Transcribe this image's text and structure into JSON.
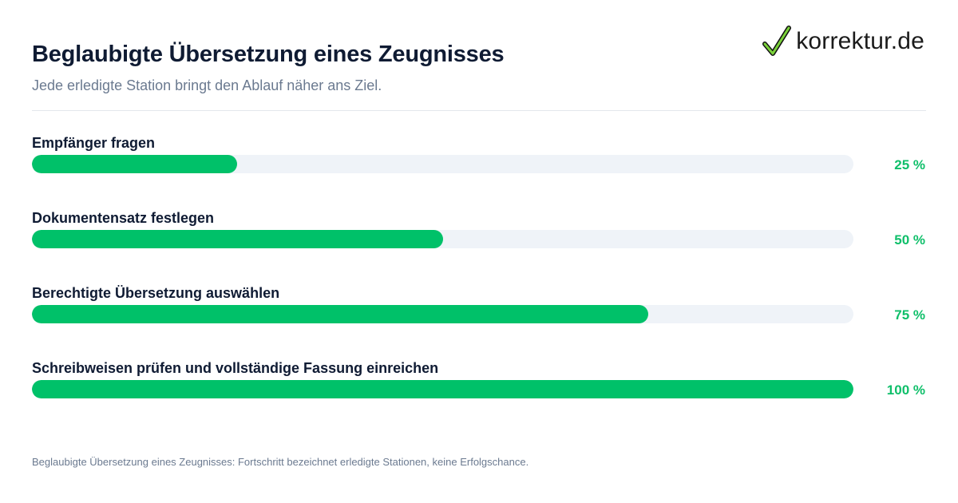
{
  "header": {
    "title": "Beglaubigte Übersetzung eines Zeugnisses",
    "subtitle": "Jede erledigte Station bringt den Ablauf näher ans Ziel."
  },
  "logo": {
    "text": "korrektur.de",
    "icon": "checkmark-icon",
    "color": "#00c169"
  },
  "steps": [
    {
      "label": "Empfänger fragen",
      "progress": 25,
      "value_text": "25 %"
    },
    {
      "label": "Dokumentensatz festlegen",
      "progress": 50,
      "value_text": "50 %"
    },
    {
      "label": "Berechtigte Übersetzung auswählen",
      "progress": 75,
      "value_text": "75 %"
    },
    {
      "label": "Schreibweisen prüfen und vollständige Fassung einreichen",
      "progress": 100,
      "value_text": "100 %"
    }
  ],
  "footnote": "Beglaubigte Übersetzung eines Zeugnisses: Fortschritt bezeichnet erledigte Stationen, keine Erfolgschance.",
  "colors": {
    "accent": "#00c169",
    "track": "#eff3f8",
    "title": "#0f1b33",
    "muted": "#6b7a90"
  }
}
